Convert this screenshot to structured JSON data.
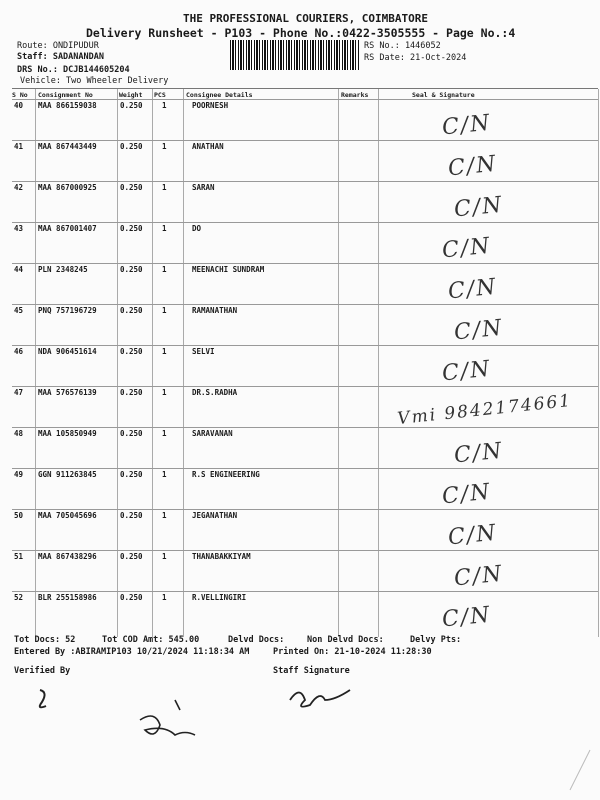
{
  "header": {
    "company": "THE PROFESSIONAL COURIERS, COIMBATORE",
    "subtitle": "Delivery Runsheet - P103 - Phone No.:0422-3505555 - Page No.:4",
    "route": "Route: ONDIPUDUR",
    "staff": "Staff: SADANANDAN",
    "drs_no": "DRS No.: DCJB144605204",
    "vehicle": "Vehicle: Two Wheeler Delivery",
    "rs_no": "RS No.: 1446052",
    "rs_date": "RS Date: 21-Oct-2024"
  },
  "table": {
    "columns": [
      "S No",
      "Consignment No",
      "Weight",
      "PCS",
      "Consignee Details",
      "Remarks",
      "Seal & Signature"
    ],
    "rows": [
      {
        "sno": "40",
        "consignment": "MAA 866159038",
        "weight": "0.250",
        "pcs": "1",
        "consignee": "POORNESH",
        "signature": "C/N"
      },
      {
        "sno": "41",
        "consignment": "MAA 867443449",
        "weight": "0.250",
        "pcs": "1",
        "consignee": "ANATHAN",
        "signature": "C/N"
      },
      {
        "sno": "42",
        "consignment": "MAA 867000925",
        "weight": "0.250",
        "pcs": "1",
        "consignee": "SARAN",
        "signature": "C/N"
      },
      {
        "sno": "43",
        "consignment": "MAA 867001407",
        "weight": "0.250",
        "pcs": "1",
        "consignee": "DO",
        "signature": "C/N"
      },
      {
        "sno": "44",
        "consignment": "PLN 2348245",
        "weight": "0.250",
        "pcs": "1",
        "consignee": "MEENACHI SUNDRAM",
        "signature": "C/N"
      },
      {
        "sno": "45",
        "consignment": "PNQ 757196729",
        "weight": "0.250",
        "pcs": "1",
        "consignee": "RAMANATHAN",
        "signature": "C/N"
      },
      {
        "sno": "46",
        "consignment": "NDA 906451614",
        "weight": "0.250",
        "pcs": "1",
        "consignee": "SELVI",
        "signature": "C/N"
      },
      {
        "sno": "47",
        "consignment": "MAA 576576139",
        "weight": "0.250",
        "pcs": "1",
        "consignee": "DR.S.RADHA",
        "signature": "Vmi 9842174661"
      },
      {
        "sno": "48",
        "consignment": "MAA 105850949",
        "weight": "0.250",
        "pcs": "1",
        "consignee": "SARAVANAN",
        "signature": "C/N"
      },
      {
        "sno": "49",
        "consignment": "GGN 911263845",
        "weight": "0.250",
        "pcs": "1",
        "consignee": "R.S ENGINEERING",
        "signature": "C/N"
      },
      {
        "sno": "50",
        "consignment": "MAA 705045696",
        "weight": "0.250",
        "pcs": "1",
        "consignee": "JEGANATHAN",
        "signature": "C/N"
      },
      {
        "sno": "51",
        "consignment": "MAA 867438296",
        "weight": "0.250",
        "pcs": "1",
        "consignee": "THANABAKKIYAM",
        "signature": "C/N"
      },
      {
        "sno": "52",
        "consignment": "BLR 255158986",
        "weight": "0.250",
        "pcs": "1",
        "consignee": "R.VELLINGIRI",
        "signature": "C/N"
      }
    ]
  },
  "footer": {
    "tot_docs": "Tot Docs:  52",
    "tot_cod": "Tot COD Amt:  545.00",
    "delvd_docs": "Delvd Docs:",
    "non_delvd_docs": "Non Delvd Docs:",
    "delvy_pts": "Delvy Pts:",
    "entered_by": "Entered By :ABIRAMIP103 10/21/2024 11:18:34 AM",
    "printed_on": "Printed On: 21-10-2024 11:28:30",
    "verified_by": "Verified By",
    "staff_signature": "Staff Signature"
  }
}
